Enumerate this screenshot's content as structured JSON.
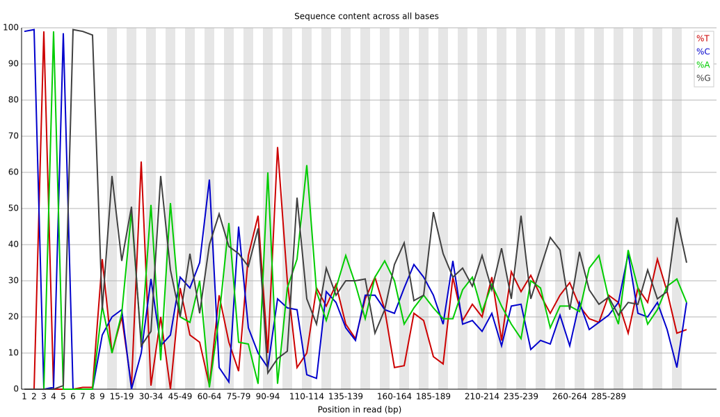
{
  "chart_data": {
    "type": "line",
    "title": "Sequence content across all bases",
    "xlabel": "Position in read (bp)",
    "categories": [
      "1",
      "2",
      "3",
      "4",
      "5",
      "6",
      "7",
      "8",
      "9",
      null,
      "15-19",
      null,
      null,
      "30-34",
      null,
      null,
      "45-49",
      null,
      null,
      "60-64",
      null,
      null,
      "75-79",
      null,
      null,
      "90-94",
      null,
      null,
      null,
      "110-114",
      null,
      null,
      null,
      "135-139",
      null,
      null,
      null,
      null,
      "160-164",
      null,
      null,
      null,
      "185-189",
      null,
      null,
      null,
      null,
      "210-214",
      null,
      null,
      null,
      "235-239",
      null,
      null,
      null,
      null,
      "260-264",
      null,
      null,
      null,
      "285-289",
      null,
      null,
      null,
      null,
      null,
      null,
      null,
      null
    ],
    "series": [
      {
        "name": "%T",
        "color": "#cc0000",
        "values": [
          0,
          0,
          99,
          0,
          0,
          0,
          0.5,
          0.5,
          36,
          10,
          20,
          1,
          63,
          1,
          20,
          0,
          28,
          15,
          13,
          1,
          26,
          13,
          5,
          37,
          48,
          10,
          67,
          30,
          6,
          10,
          28,
          23,
          29,
          18,
          14,
          25,
          31,
          22,
          6,
          6.5,
          21,
          19,
          9,
          7,
          31,
          19,
          23.5,
          20,
          31,
          13.5,
          32.5,
          27,
          31.5,
          26,
          21,
          26,
          29.5,
          23,
          19.5,
          18.5,
          26,
          24,
          15.5,
          28,
          24,
          36,
          27,
          15.5,
          16.5
        ]
      },
      {
        "name": "%C",
        "color": "#0000cc",
        "values": [
          99,
          99.5,
          0,
          0.5,
          98.5,
          0,
          0,
          0,
          15,
          20,
          22,
          0,
          10,
          30.5,
          12,
          15,
          31,
          28,
          35,
          58,
          6,
          2,
          45,
          17,
          10,
          6,
          25,
          22.5,
          22,
          4,
          3,
          27,
          24,
          17,
          13.5,
          26,
          26,
          22,
          21,
          28,
          34.5,
          31,
          26,
          18,
          35.5,
          18,
          19,
          16,
          21,
          12,
          23,
          23.5,
          11,
          13.5,
          12.5,
          20.5,
          12,
          24,
          16.5,
          18.5,
          20.5,
          24,
          37.5,
          21,
          20,
          24,
          16.5,
          6,
          24
        ]
      },
      {
        "name": "%A",
        "color": "#00cc00",
        "values": [
          0,
          0,
          0,
          99,
          0,
          0,
          0,
          0,
          23,
          10,
          21,
          49,
          13,
          51,
          8,
          51.5,
          20,
          18.5,
          30,
          0.5,
          20,
          46,
          13,
          12.5,
          1.5,
          60,
          1.5,
          28,
          36,
          62,
          27,
          19,
          28,
          37,
          29,
          19.5,
          31,
          35.5,
          30,
          18,
          22.5,
          26,
          22.5,
          19.5,
          19.5,
          27.5,
          31,
          21.5,
          29,
          23,
          18,
          14,
          30,
          28,
          17,
          23,
          23,
          21.5,
          33.5,
          37,
          25,
          18,
          38.5,
          28,
          18,
          22,
          28.5,
          30.5,
          24
        ]
      },
      {
        "name": "%G",
        "color": "#404040",
        "values": [
          0,
          0,
          0,
          0,
          1,
          99.5,
          99,
          98,
          22,
          59,
          35.5,
          50.5,
          12,
          16,
          59,
          33,
          20,
          37.5,
          21,
          40,
          48.5,
          39.5,
          37.5,
          34,
          44.5,
          4.5,
          8.5,
          10.5,
          53,
          25,
          18,
          33.5,
          26,
          30,
          30,
          30.5,
          15.5,
          22,
          34.5,
          40.5,
          24.5,
          26,
          49,
          37.5,
          31,
          33.5,
          28.5,
          37,
          27.5,
          39,
          25,
          48,
          25,
          33.5,
          42,
          38.5,
          22,
          38,
          27.5,
          23.5,
          25.5,
          20.5,
          24,
          23.5,
          33,
          25,
          27,
          47.5,
          35
        ]
      }
    ],
    "ylim": [
      0,
      100
    ],
    "yticks": [
      0,
      10,
      20,
      30,
      40,
      50,
      60,
      70,
      80,
      90,
      100
    ],
    "grid": true,
    "legend": "upper right"
  }
}
